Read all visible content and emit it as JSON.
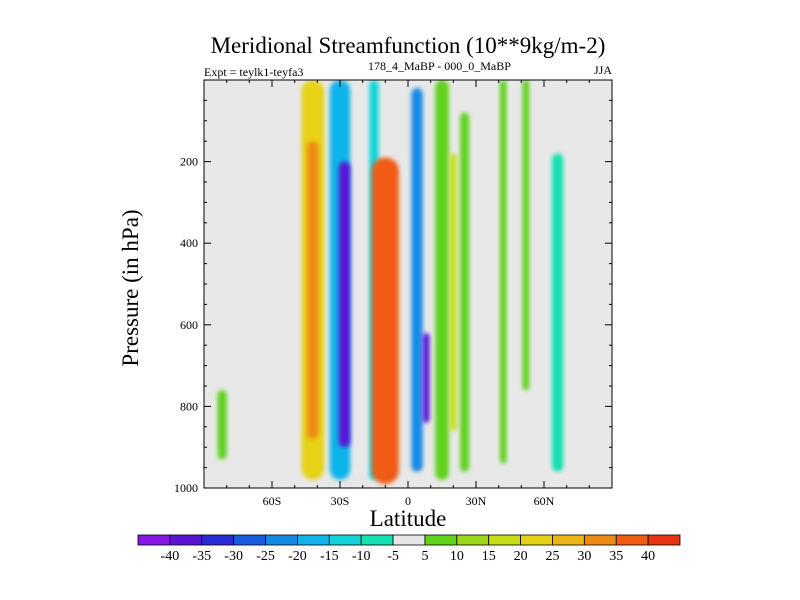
{
  "chart_data": {
    "type": "heatmap",
    "title": "Meridional Streamfunction (10**9kg/m-2)",
    "left_subtitle": "Expt = teylk1-teyfa3",
    "center_subtitle": "178_4_MaBP - 000_0_MaBP",
    "right_subtitle": "JJA",
    "xlabel": "Latitude",
    "ylabel": "Pressure (in hPa)",
    "xlim": [
      -90,
      90
    ],
    "ylim": [
      1000,
      0
    ],
    "x_ticks": [
      -60,
      -30,
      0,
      30,
      60
    ],
    "x_tick_labels": [
      "60S",
      "30S",
      "0",
      "30N",
      "60N"
    ],
    "y_ticks": [
      200,
      400,
      600,
      800,
      1000
    ],
    "y_tick_labels": [
      "200",
      "400",
      "600",
      "800",
      "1000"
    ],
    "colorbar_levels": [
      -40,
      -35,
      -30,
      -25,
      -20,
      -15,
      -10,
      -5,
      5,
      10,
      15,
      20,
      25,
      30,
      35,
      40
    ],
    "colorbar_labels": [
      "-40",
      "-35",
      "-30",
      "-25",
      "-20",
      "-15",
      "-10",
      "-5",
      "5",
      "10",
      "15",
      "20",
      "25",
      "30",
      "35",
      "40"
    ],
    "colorbar_colors": [
      "#8a17e8",
      "#5a14d6",
      "#2a2ad6",
      "#1a5ae0",
      "#128ae6",
      "#10b4ea",
      "#10d4d8",
      "#14e0b0",
      "#e6e6e6",
      "#5fd21a",
      "#9ad61a",
      "#c6de14",
      "#e6d214",
      "#ecb414",
      "#ee8a12",
      "#f05c12",
      "#e83410"
    ],
    "features": [
      {
        "lat": -82,
        "p_top": 760,
        "p_bottom": 930,
        "value": 10,
        "width": 4
      },
      {
        "lat": -42,
        "p_top": 0,
        "p_bottom": 980,
        "value": 25,
        "width": 10
      },
      {
        "lat": -42,
        "p_top": 150,
        "p_bottom": 880,
        "value": 35,
        "width": 5
      },
      {
        "lat": -30,
        "p_top": 0,
        "p_bottom": 980,
        "value": -15,
        "width": 9
      },
      {
        "lat": -28,
        "p_top": 200,
        "p_bottom": 900,
        "value": -35,
        "width": 5
      },
      {
        "lat": -15,
        "p_top": 0,
        "p_bottom": 980,
        "value": -10,
        "width": 4
      },
      {
        "lat": -10,
        "p_top": 190,
        "p_bottom": 990,
        "value": 40,
        "width": 12
      },
      {
        "lat": 4,
        "p_top": 20,
        "p_bottom": 960,
        "value": -20,
        "width": 5
      },
      {
        "lat": 8,
        "p_top": 620,
        "p_bottom": 840,
        "value": -35,
        "width": 3
      },
      {
        "lat": 15,
        "p_top": 0,
        "p_bottom": 980,
        "value": 10,
        "width": 6
      },
      {
        "lat": 20,
        "p_top": 180,
        "p_bottom": 860,
        "value": 20,
        "width": 3
      },
      {
        "lat": 25,
        "p_top": 80,
        "p_bottom": 960,
        "value": 10,
        "width": 4
      },
      {
        "lat": 42,
        "p_top": 0,
        "p_bottom": 940,
        "value": 10,
        "width": 3
      },
      {
        "lat": 52,
        "p_top": 0,
        "p_bottom": 760,
        "value": 10,
        "width": 3
      },
      {
        "lat": 66,
        "p_top": 180,
        "p_bottom": 960,
        "value": -5,
        "width": 5
      }
    ]
  }
}
